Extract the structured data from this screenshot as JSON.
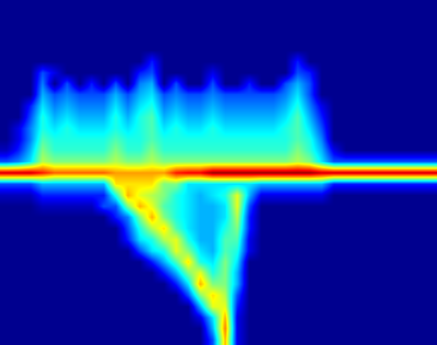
{
  "chart_data": {
    "type": "heatmap",
    "color": "jet",
    "tick_labels": false,
    "color_range": [
      0,
      1
    ],
    "cells": [
      [
        0,
        0,
        0,
        0,
        0,
        0,
        0,
        0,
        0,
        0,
        0,
        0,
        0,
        0,
        0,
        0,
        0,
        0,
        0,
        0,
        0,
        0,
        0,
        0,
        0,
        0,
        0,
        0,
        0,
        0,
        0,
        0,
        0,
        0,
        0,
        0
      ],
      [
        0,
        0,
        0,
        0,
        0,
        0,
        0,
        0,
        0,
        0,
        0,
        0,
        0,
        0,
        0,
        0,
        0,
        0,
        0,
        0,
        0,
        0,
        0,
        0,
        0,
        0,
        0,
        0,
        0,
        0,
        0,
        0,
        0,
        0,
        0,
        0
      ],
      [
        0,
        0,
        0,
        0,
        0,
        0,
        0,
        0,
        0,
        0,
        0,
        0,
        0,
        0,
        0,
        0,
        0,
        0,
        0,
        0,
        0,
        0,
        0,
        0,
        0,
        0,
        0,
        0,
        0,
        0,
        0,
        0,
        0,
        0,
        0,
        0
      ],
      [
        0,
        0,
        0,
        0,
        0,
        0,
        0,
        0,
        0,
        0,
        0,
        0,
        0,
        0,
        0,
        0,
        0,
        0,
        0,
        0,
        0,
        0,
        0,
        0,
        0,
        0,
        0,
        0,
        0,
        0,
        0,
        0,
        0,
        0,
        0,
        0
      ],
      [
        0,
        0,
        0,
        0,
        0,
        0,
        0,
        0,
        0,
        0,
        0,
        0,
        0,
        0,
        0,
        0,
        0,
        0,
        0,
        0,
        0,
        0,
        0,
        0,
        0,
        0,
        0,
        0,
        0,
        0,
        0,
        0,
        0,
        0,
        0,
        0
      ],
      [
        0,
        0,
        0,
        0,
        0,
        0,
        0,
        0,
        0,
        0,
        0,
        0,
        0.15,
        0,
        0,
        0,
        0,
        0,
        0,
        0,
        0,
        0,
        0,
        0,
        0.15,
        0,
        0,
        0,
        0,
        0,
        0,
        0,
        0,
        0,
        0,
        0
      ],
      [
        0,
        0,
        0,
        0.2,
        0.1,
        0,
        0,
        0,
        0,
        0,
        0,
        0.15,
        0.2,
        0,
        0,
        0,
        0,
        0.1,
        0,
        0,
        0,
        0,
        0,
        0,
        0.2,
        0.15,
        0,
        0,
        0,
        0,
        0,
        0,
        0,
        0,
        0,
        0
      ],
      [
        0,
        0,
        0,
        0.25,
        0,
        0.2,
        0,
        0.15,
        0,
        0.2,
        0,
        0.25,
        0.3,
        0,
        0.2,
        0,
        0,
        0.2,
        0,
        0,
        0.15,
        0,
        0,
        0.2,
        0.3,
        0.2,
        0,
        0,
        0,
        0,
        0,
        0,
        0,
        0,
        0,
        0
      ],
      [
        0,
        0,
        0,
        0.3,
        0.2,
        0.25,
        0.2,
        0.2,
        0.2,
        0.3,
        0.2,
        0.3,
        0.35,
        0.2,
        0.25,
        0.2,
        0.2,
        0.25,
        0.2,
        0.2,
        0.2,
        0.2,
        0.2,
        0.25,
        0.35,
        0.2,
        0,
        0,
        0,
        0,
        0,
        0,
        0,
        0,
        0,
        0
      ],
      [
        0,
        0,
        0.15,
        0.35,
        0.25,
        0.3,
        0.25,
        0.25,
        0.25,
        0.35,
        0.25,
        0.35,
        0.4,
        0.25,
        0.3,
        0.25,
        0.25,
        0.3,
        0.25,
        0.25,
        0.25,
        0.25,
        0.25,
        0.3,
        0.4,
        0.25,
        0.1,
        0,
        0,
        0,
        0,
        0,
        0,
        0,
        0,
        0
      ],
      [
        0,
        0,
        0.2,
        0.4,
        0.3,
        0.35,
        0.3,
        0.3,
        0.3,
        0.4,
        0.3,
        0.4,
        0.45,
        0.3,
        0.35,
        0.3,
        0.3,
        0.35,
        0.3,
        0.3,
        0.3,
        0.3,
        0.3,
        0.35,
        0.45,
        0.3,
        0.15,
        0,
        0,
        0,
        0,
        0,
        0,
        0,
        0,
        0
      ],
      [
        0,
        0.1,
        0.25,
        0.4,
        0.35,
        0.4,
        0.35,
        0.35,
        0.35,
        0.4,
        0.35,
        0.4,
        0.45,
        0.35,
        0.4,
        0.35,
        0.35,
        0.4,
        0.35,
        0.35,
        0.35,
        0.35,
        0.35,
        0.4,
        0.45,
        0.35,
        0.2,
        0,
        0,
        0,
        0,
        0,
        0,
        0,
        0,
        0
      ],
      [
        0,
        0.1,
        0.25,
        0.45,
        0.4,
        0.4,
        0.4,
        0.4,
        0.4,
        0.45,
        0.4,
        0.4,
        0.45,
        0.4,
        0.4,
        0.4,
        0.4,
        0.4,
        0.4,
        0.4,
        0.4,
        0.4,
        0.4,
        0.4,
        0.45,
        0.4,
        0.25,
        0,
        0,
        0,
        0,
        0,
        0,
        0,
        0,
        0
      ],
      [
        0.05,
        0.15,
        0.3,
        0.5,
        0.42,
        0.42,
        0.42,
        0.42,
        0.42,
        0.5,
        0.42,
        0.42,
        0.5,
        0.42,
        0.42,
        0.42,
        0.42,
        0.42,
        0.42,
        0.42,
        0.42,
        0.42,
        0.42,
        0.42,
        0.5,
        0.42,
        0.3,
        0.1,
        0,
        0,
        0,
        0,
        0,
        0,
        0,
        0
      ],
      [
        0.2,
        0.25,
        0.35,
        0.55,
        0.5,
        0.5,
        0.5,
        0.5,
        0.5,
        0.55,
        0.5,
        0.5,
        0.55,
        0.5,
        0.5,
        0.5,
        0.5,
        0.5,
        0.5,
        0.5,
        0.5,
        0.5,
        0.5,
        0.5,
        0.55,
        0.5,
        0.35,
        0.2,
        0.2,
        0.2,
        0.2,
        0.2,
        0.2,
        0.2,
        0.2,
        0.2
      ],
      [
        0.92,
        0.92,
        0.92,
        0.85,
        0.78,
        0.78,
        0.78,
        0.78,
        0.78,
        0.72,
        0.72,
        0.72,
        0.72,
        0.72,
        0.85,
        0.88,
        0.88,
        0.97,
        0.97,
        0.97,
        0.97,
        0.97,
        0.97,
        0.97,
        0.97,
        0.97,
        0.92,
        0.92,
        0.92,
        0.92,
        0.92,
        0.92,
        0.92,
        0.92,
        0.92,
        0.92
      ],
      [
        0.2,
        0.2,
        0.2,
        0.3,
        0.3,
        0.3,
        0.3,
        0.3,
        0.3,
        0.65,
        0.65,
        0.65,
        0.65,
        0.5,
        0.5,
        0.35,
        0.35,
        0.35,
        0.35,
        0.35,
        0.35,
        0.3,
        0.3,
        0.3,
        0.3,
        0.3,
        0.3,
        0.15,
        0.15,
        0.15,
        0.15,
        0.15,
        0.15,
        0.15,
        0.15,
        0.15
      ],
      [
        0.05,
        0.05,
        0.05,
        0.15,
        0.15,
        0.15,
        0.15,
        0.15,
        0.15,
        0.4,
        0.7,
        0.6,
        0.55,
        0.5,
        0.4,
        0.35,
        0.3,
        0.35,
        0.4,
        0.6,
        0.3,
        0.1,
        0.1,
        0.1,
        0.1,
        0.1,
        0.1,
        0,
        0,
        0,
        0,
        0,
        0,
        0,
        0,
        0
      ],
      [
        0,
        0,
        0,
        0.05,
        0.05,
        0.05,
        0.05,
        0.05,
        0.2,
        0.2,
        0.5,
        0.7,
        0.6,
        0.45,
        0.4,
        0.35,
        0.3,
        0.3,
        0.35,
        0.6,
        0.2,
        0,
        0,
        0,
        0,
        0,
        0,
        0,
        0,
        0,
        0,
        0,
        0,
        0,
        0,
        0
      ],
      [
        0,
        0,
        0,
        0,
        0,
        0,
        0,
        0,
        0,
        0.15,
        0.25,
        0.5,
        0.7,
        0.5,
        0.4,
        0.35,
        0.3,
        0.3,
        0.35,
        0.55,
        0.15,
        0,
        0,
        0,
        0,
        0,
        0,
        0,
        0,
        0,
        0,
        0,
        0,
        0,
        0,
        0
      ],
      [
        0,
        0,
        0,
        0,
        0,
        0,
        0,
        0,
        0,
        0,
        0.2,
        0.4,
        0.55,
        0.65,
        0.45,
        0.35,
        0.3,
        0.3,
        0.4,
        0.5,
        0.15,
        0,
        0,
        0,
        0,
        0,
        0,
        0,
        0,
        0,
        0,
        0,
        0,
        0,
        0,
        0
      ],
      [
        0,
        0,
        0,
        0,
        0,
        0,
        0,
        0,
        0,
        0,
        0.15,
        0.35,
        0.4,
        0.55,
        0.6,
        0.4,
        0.3,
        0.3,
        0.45,
        0.45,
        0.1,
        0,
        0,
        0,
        0,
        0,
        0,
        0,
        0,
        0,
        0,
        0,
        0,
        0,
        0,
        0
      ],
      [
        0,
        0,
        0,
        0,
        0,
        0,
        0,
        0,
        0,
        0,
        0,
        0.2,
        0.35,
        0.4,
        0.6,
        0.5,
        0.35,
        0.3,
        0.45,
        0.4,
        0.1,
        0,
        0,
        0,
        0,
        0,
        0,
        0,
        0,
        0,
        0,
        0,
        0,
        0,
        0,
        0
      ],
      [
        0,
        0,
        0,
        0,
        0,
        0,
        0,
        0,
        0,
        0,
        0,
        0,
        0.15,
        0.3,
        0.45,
        0.65,
        0.4,
        0.35,
        0.5,
        0.35,
        0,
        0,
        0,
        0,
        0,
        0,
        0,
        0,
        0,
        0,
        0,
        0,
        0,
        0,
        0,
        0
      ],
      [
        0,
        0,
        0,
        0,
        0,
        0,
        0,
        0,
        0,
        0,
        0,
        0,
        0,
        0.15,
        0.3,
        0.5,
        0.6,
        0.4,
        0.5,
        0.3,
        0,
        0,
        0,
        0,
        0,
        0,
        0,
        0,
        0,
        0,
        0,
        0,
        0,
        0,
        0,
        0
      ],
      [
        0,
        0,
        0,
        0,
        0,
        0,
        0,
        0,
        0,
        0,
        0,
        0,
        0,
        0,
        0.15,
        0.35,
        0.7,
        0.5,
        0.5,
        0.3,
        0,
        0,
        0,
        0,
        0,
        0,
        0,
        0,
        0,
        0,
        0,
        0,
        0,
        0,
        0,
        0
      ],
      [
        0,
        0,
        0,
        0,
        0,
        0,
        0,
        0,
        0,
        0,
        0,
        0,
        0,
        0,
        0,
        0.2,
        0.5,
        0.65,
        0.55,
        0.2,
        0,
        0,
        0,
        0,
        0,
        0,
        0,
        0,
        0,
        0,
        0,
        0,
        0,
        0,
        0,
        0
      ],
      [
        0,
        0,
        0,
        0,
        0,
        0,
        0,
        0,
        0,
        0,
        0,
        0,
        0,
        0,
        0,
        0,
        0.3,
        0.6,
        0.6,
        0.15,
        0,
        0,
        0,
        0,
        0,
        0,
        0,
        0,
        0,
        0,
        0,
        0,
        0,
        0,
        0,
        0
      ],
      [
        0,
        0,
        0,
        0,
        0,
        0,
        0,
        0,
        0,
        0,
        0,
        0,
        0,
        0,
        0,
        0,
        0.1,
        0.35,
        0.7,
        0.1,
        0,
        0,
        0,
        0,
        0,
        0,
        0,
        0,
        0,
        0,
        0,
        0,
        0,
        0,
        0,
        0
      ],
      [
        0,
        0,
        0,
        0,
        0,
        0,
        0,
        0,
        0,
        0,
        0,
        0,
        0,
        0,
        0,
        0,
        0,
        0.3,
        0.75,
        0.1,
        0,
        0,
        0,
        0,
        0,
        0,
        0,
        0,
        0,
        0,
        0,
        0,
        0,
        0,
        0,
        0
      ],
      [
        0,
        0,
        0,
        0,
        0,
        0,
        0,
        0,
        0,
        0,
        0,
        0,
        0,
        0,
        0,
        0,
        0,
        0.2,
        0.7,
        0.1,
        0,
        0,
        0,
        0,
        0,
        0,
        0,
        0,
        0,
        0,
        0,
        0,
        0,
        0,
        0,
        0
      ]
    ]
  }
}
